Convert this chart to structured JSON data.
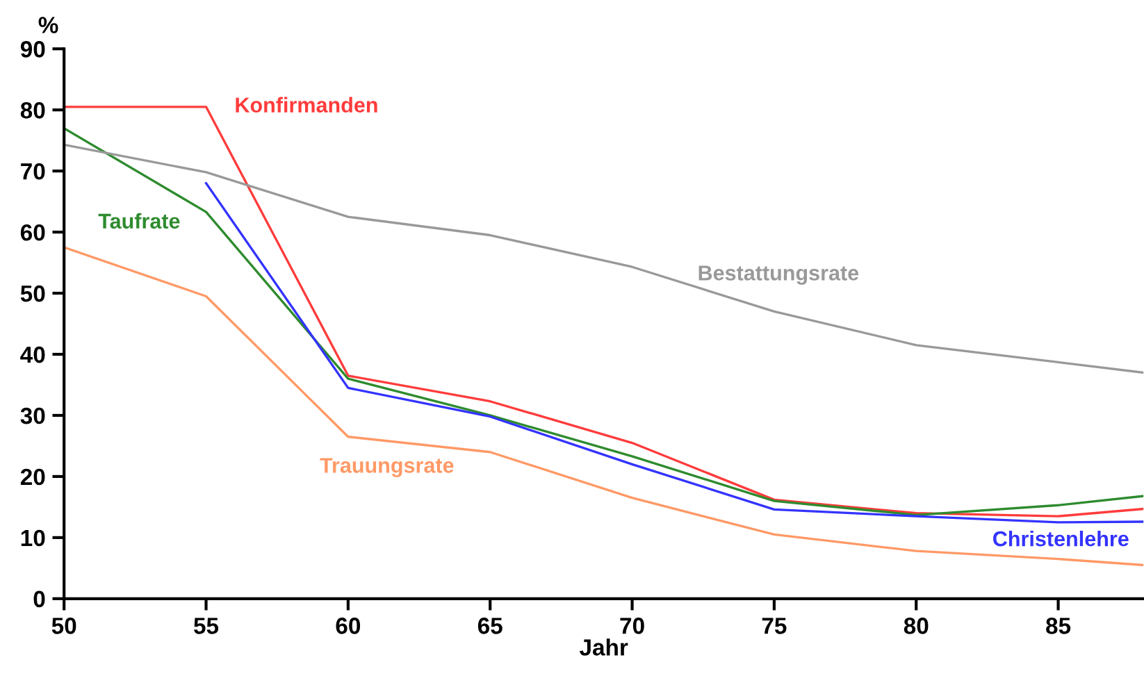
{
  "chart_data": {
    "type": "line",
    "xlabel": "Jahr",
    "ylabel": "%",
    "xlim": [
      50,
      88
    ],
    "ylim": [
      0,
      90
    ],
    "xticks": [
      50,
      55,
      60,
      65,
      70,
      75,
      80,
      85
    ],
    "yticks": [
      0,
      10,
      20,
      30,
      40,
      50,
      60,
      70,
      80,
      90
    ],
    "grid": false,
    "legend": false,
    "marker": "none",
    "line_style": "solid",
    "x": [
      50,
      55,
      60,
      65,
      70,
      75,
      80,
      85,
      88
    ],
    "series": [
      {
        "name": "Konfirmanden",
        "color": "#ff3b3b",
        "values": [
          80.5,
          80.5,
          36.5,
          32.3,
          25.5,
          16.2,
          14,
          13.5,
          14.7
        ]
      },
      {
        "name": "Taufrate",
        "color": "#2e8b2e",
        "values": [
          77,
          63.3,
          36,
          30,
          23.3,
          16,
          13.7,
          15.3,
          16.8
        ]
      },
      {
        "name": "Christenlehre",
        "color": "#3333ff",
        "values": [
          null,
          68,
          34.5,
          29.8,
          22,
          14.6,
          13.5,
          12.5,
          12.6
        ]
      },
      {
        "name": "Bestattungsrate",
        "color": "#999999",
        "values": [
          74.3,
          69.8,
          62.5,
          59.5,
          54.3,
          47,
          41.5,
          38.7,
          37
        ]
      },
      {
        "name": "Trauungsrate",
        "color": "#ff9966",
        "values": [
          57.5,
          49.5,
          26.5,
          24,
          16.5,
          10.5,
          7.8,
          6.5,
          5.5
        ]
      }
    ]
  }
}
